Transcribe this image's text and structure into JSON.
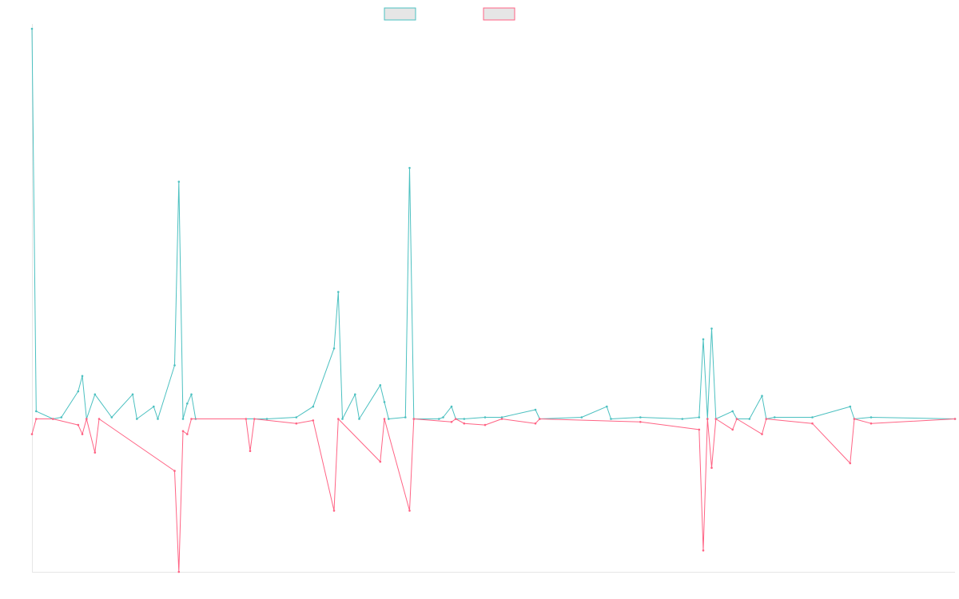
{
  "chart_data": {
    "type": "line",
    "title": "",
    "xlabel": "",
    "ylabel": "",
    "grid": false,
    "legend": "top-center",
    "xlim": [
      0,
      220
    ],
    "ylim": [
      -100,
      255
    ],
    "series": [
      {
        "color": "#4bc0c0",
        "fill": "#e6e6e6",
        "points": [
          [
            0,
            255
          ],
          [
            1,
            5
          ],
          [
            5,
            0
          ],
          [
            7,
            1
          ],
          [
            11,
            18
          ],
          [
            12,
            28
          ],
          [
            13,
            0
          ],
          [
            15,
            16
          ],
          [
            19,
            1
          ],
          [
            24,
            16
          ],
          [
            25,
            0
          ],
          [
            29,
            8
          ],
          [
            30,
            0
          ],
          [
            34,
            35
          ],
          [
            35,
            155
          ],
          [
            36,
            0
          ],
          [
            37,
            10
          ],
          [
            38,
            16
          ],
          [
            39,
            0
          ],
          [
            56,
            0
          ],
          [
            63,
            1
          ],
          [
            67,
            8
          ],
          [
            72,
            46
          ],
          [
            73,
            83
          ],
          [
            74,
            0
          ],
          [
            77,
            16
          ],
          [
            78,
            0
          ],
          [
            83,
            22
          ],
          [
            84,
            11
          ],
          [
            85,
            0
          ],
          [
            89,
            1
          ],
          [
            90,
            164
          ],
          [
            91,
            0
          ],
          [
            97,
            0
          ],
          [
            98,
            1
          ],
          [
            100,
            8
          ],
          [
            101,
            0
          ],
          [
            103,
            0
          ],
          [
            108,
            1
          ],
          [
            112,
            1
          ],
          [
            120,
            6
          ],
          [
            121,
            0
          ],
          [
            131,
            1
          ],
          [
            137,
            8
          ],
          [
            138,
            0
          ],
          [
            145,
            1
          ],
          [
            155,
            0
          ],
          [
            159,
            1
          ],
          [
            160,
            52
          ],
          [
            161,
            0
          ],
          [
            162,
            59
          ],
          [
            163,
            0
          ],
          [
            167,
            5
          ],
          [
            168,
            0
          ],
          [
            171,
            0
          ],
          [
            174,
            15
          ],
          [
            175,
            0
          ],
          [
            177,
            1
          ],
          [
            186,
            1
          ],
          [
            195,
            8
          ],
          [
            196,
            0
          ],
          [
            200,
            1
          ],
          [
            220,
            0
          ]
        ]
      },
      {
        "color": "#ff6384",
        "fill": "#e6e6e6",
        "points": [
          [
            0,
            -10
          ],
          [
            1,
            0
          ],
          [
            5,
            0
          ],
          [
            11,
            -4
          ],
          [
            12,
            -10
          ],
          [
            13,
            0
          ],
          [
            15,
            -22
          ],
          [
            16,
            0
          ],
          [
            34,
            -34
          ],
          [
            35,
            -100
          ],
          [
            36,
            -8
          ],
          [
            37,
            -10
          ],
          [
            38,
            0
          ],
          [
            51,
            0
          ],
          [
            52,
            -21
          ],
          [
            53,
            0
          ],
          [
            63,
            -3
          ],
          [
            67,
            -1
          ],
          [
            72,
            -60
          ],
          [
            73,
            0
          ],
          [
            83,
            -28
          ],
          [
            84,
            0
          ],
          [
            90,
            -60
          ],
          [
            91,
            0
          ],
          [
            100,
            -2
          ],
          [
            101,
            0
          ],
          [
            103,
            -3
          ],
          [
            108,
            -4
          ],
          [
            112,
            0
          ],
          [
            120,
            -3
          ],
          [
            121,
            0
          ],
          [
            145,
            -2
          ],
          [
            159,
            -7
          ],
          [
            160,
            -86
          ],
          [
            161,
            0
          ],
          [
            162,
            -32
          ],
          [
            163,
            0
          ],
          [
            167,
            -7
          ],
          [
            168,
            0
          ],
          [
            174,
            -10
          ],
          [
            175,
            0
          ],
          [
            186,
            -3
          ],
          [
            195,
            -29
          ],
          [
            196,
            0
          ],
          [
            200,
            -3
          ],
          [
            220,
            0
          ]
        ]
      }
    ]
  }
}
